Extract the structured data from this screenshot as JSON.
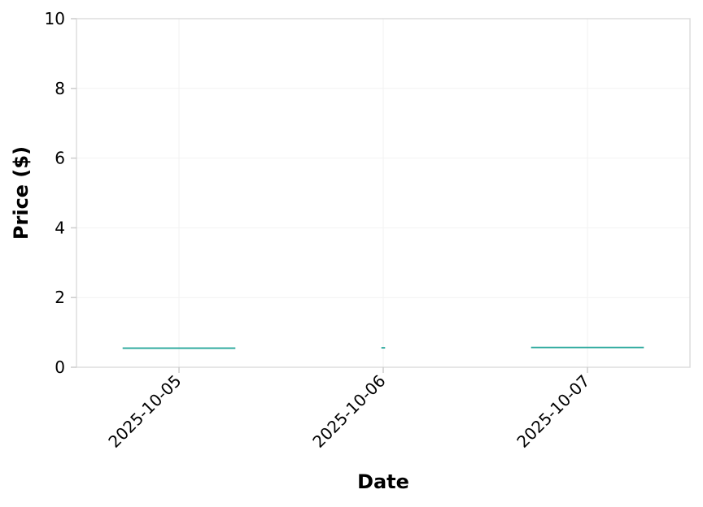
{
  "chart_data": {
    "type": "candlestick",
    "title": "",
    "xlabel": "Date",
    "ylabel": "Price ($)",
    "categories": [
      "2025-10-05",
      "2025-10-06",
      "2025-10-07"
    ],
    "candles": [
      {
        "date": "2025-10-05",
        "open": 0.55,
        "high": 0.56,
        "low": 0.54,
        "close": 0.55
      },
      {
        "date": "2025-10-06",
        "open": 0.56,
        "high": 0.57,
        "low": 0.55,
        "close": 0.55
      },
      {
        "date": "2025-10-07",
        "open": 0.57,
        "high": 0.57,
        "low": 0.57,
        "close": 0.57
      }
    ],
    "ylim": [
      0,
      10
    ],
    "yticks": [
      "0",
      "2",
      "4",
      "6",
      "8",
      "10"
    ],
    "grid": true,
    "colors": {
      "up": "#26a69a",
      "down": "#26a69a",
      "frame": "#dddddd",
      "grid": "#f2f2f2"
    }
  }
}
